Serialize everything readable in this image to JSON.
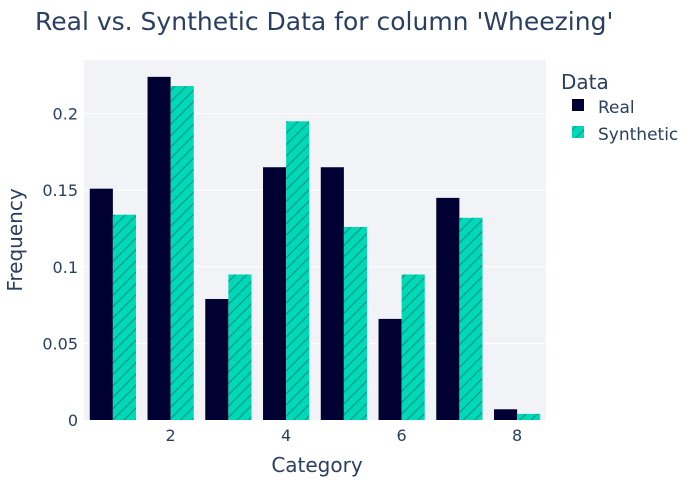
{
  "chart_data": {
    "type": "bar",
    "title": "Real vs. Synthetic Data for column 'Wheezing'",
    "xlabel": "Category",
    "ylabel": "Frequency",
    "x": [
      1,
      2,
      3,
      4,
      5,
      6,
      7,
      8
    ],
    "x_ticks": [
      "2",
      "4",
      "6",
      "8"
    ],
    "x_tick_values": [
      2,
      4,
      6,
      8
    ],
    "y_ticks": [
      "0",
      "0.05",
      "0.1",
      "0.15",
      "0.2"
    ],
    "y_tick_values": [
      0,
      0.05,
      0.1,
      0.15,
      0.2
    ],
    "ylim": [
      0,
      0.235
    ],
    "grid": true,
    "legend": {
      "title": "Data",
      "placement": "right"
    },
    "series": [
      {
        "name": "Real",
        "color": "#000033",
        "pattern": "solid",
        "values": [
          0.151,
          0.224,
          0.079,
          0.165,
          0.165,
          0.066,
          0.145,
          0.007
        ]
      },
      {
        "name": "Synthetic",
        "color": "#00d9b8",
        "pattern": "diagonal-hatch",
        "values": [
          0.134,
          0.218,
          0.095,
          0.195,
          0.126,
          0.095,
          0.132,
          0.004
        ]
      }
    ]
  }
}
